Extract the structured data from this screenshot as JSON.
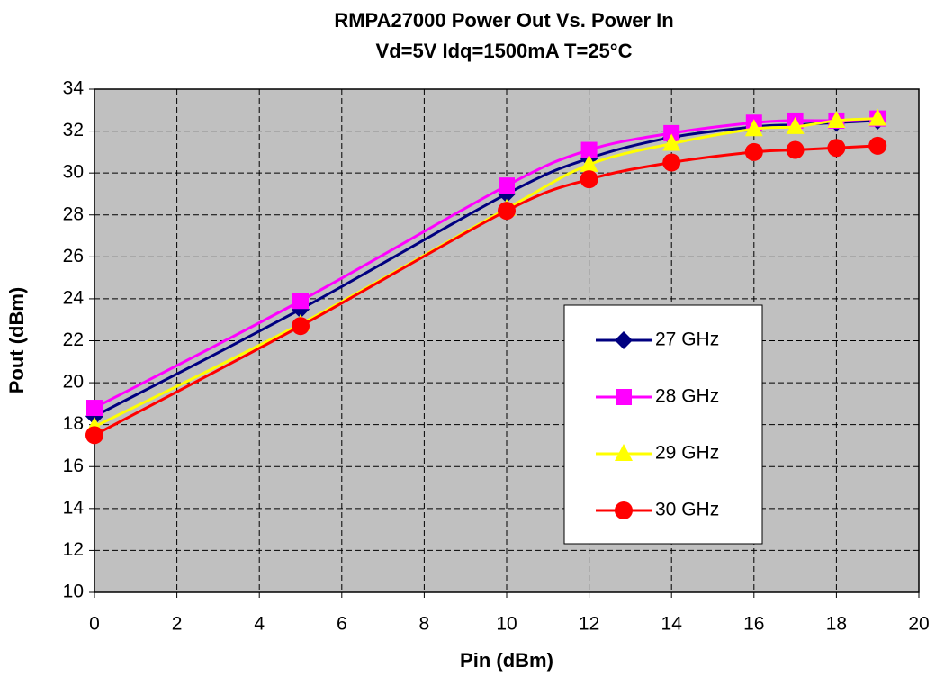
{
  "chart_data": {
    "type": "line",
    "title": "RMPA27000 Power Out Vs. Power In",
    "subtitle": "Vd=5V Idq=1500mA T=25°C",
    "x_label": "Pin (dBm)",
    "y_label": "Pout (dBm)",
    "x": [
      0,
      5,
      10,
      12,
      14,
      16,
      17,
      18,
      19
    ],
    "series": [
      {
        "name": "27 GHz",
        "color": "#000080",
        "marker": "diamond",
        "values": [
          18.4,
          23.5,
          29.0,
          30.7,
          31.7,
          32.2,
          32.3,
          32.4,
          32.5
        ]
      },
      {
        "name": "28 GHz",
        "color": "#ff00ff",
        "marker": "square",
        "values": [
          18.8,
          23.9,
          29.4,
          31.1,
          31.9,
          32.4,
          32.5,
          32.5,
          32.6
        ]
      },
      {
        "name": "29 GHz",
        "color": "#ffff00",
        "marker": "triangle",
        "values": [
          17.9,
          22.8,
          28.3,
          30.4,
          31.4,
          32.1,
          32.2,
          32.5,
          32.6
        ]
      },
      {
        "name": "30 GHz",
        "color": "#ff0000",
        "marker": "circle",
        "values": [
          17.5,
          22.7,
          28.2,
          29.7,
          30.5,
          31.0,
          31.1,
          31.2,
          31.3
        ]
      }
    ],
    "xlim": [
      0,
      20
    ],
    "xticks": [
      0,
      2,
      4,
      6,
      8,
      10,
      12,
      14,
      16,
      18,
      20
    ],
    "ylim": [
      10,
      34
    ],
    "yticks": [
      10,
      12,
      14,
      16,
      18,
      20,
      22,
      24,
      26,
      28,
      30,
      32,
      34
    ],
    "grid": true,
    "legend": "right"
  }
}
